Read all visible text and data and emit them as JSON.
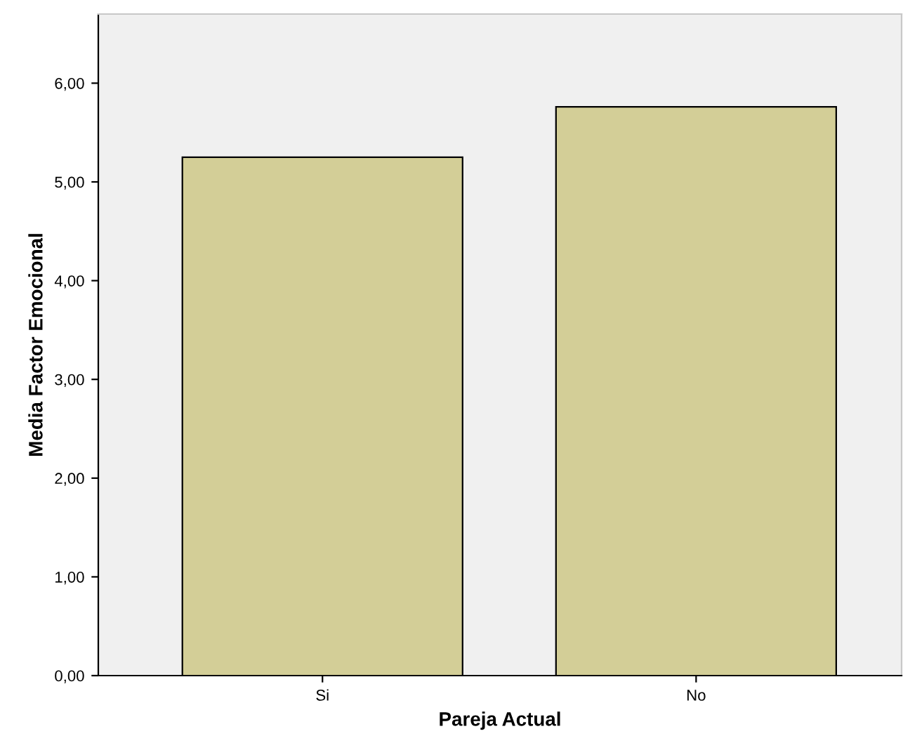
{
  "chart_data": {
    "type": "bar",
    "xlabel": "Pareja Actual",
    "ylabel": "Media Factor Emocional",
    "categories": [
      "Si",
      "No"
    ],
    "values": [
      5.25,
      5.76
    ],
    "color": "#d3ce97",
    "ylim": [
      0,
      6.7
    ],
    "yticks": [
      {
        "value": 0,
        "label": "0,00"
      },
      {
        "value": 1,
        "label": "1,00"
      },
      {
        "value": 2,
        "label": "2,00"
      },
      {
        "value": 3,
        "label": "3,00"
      },
      {
        "value": 4,
        "label": "4,00"
      },
      {
        "value": 5,
        "label": "5,00"
      },
      {
        "value": 6,
        "label": "6,00"
      }
    ],
    "grid": false
  }
}
